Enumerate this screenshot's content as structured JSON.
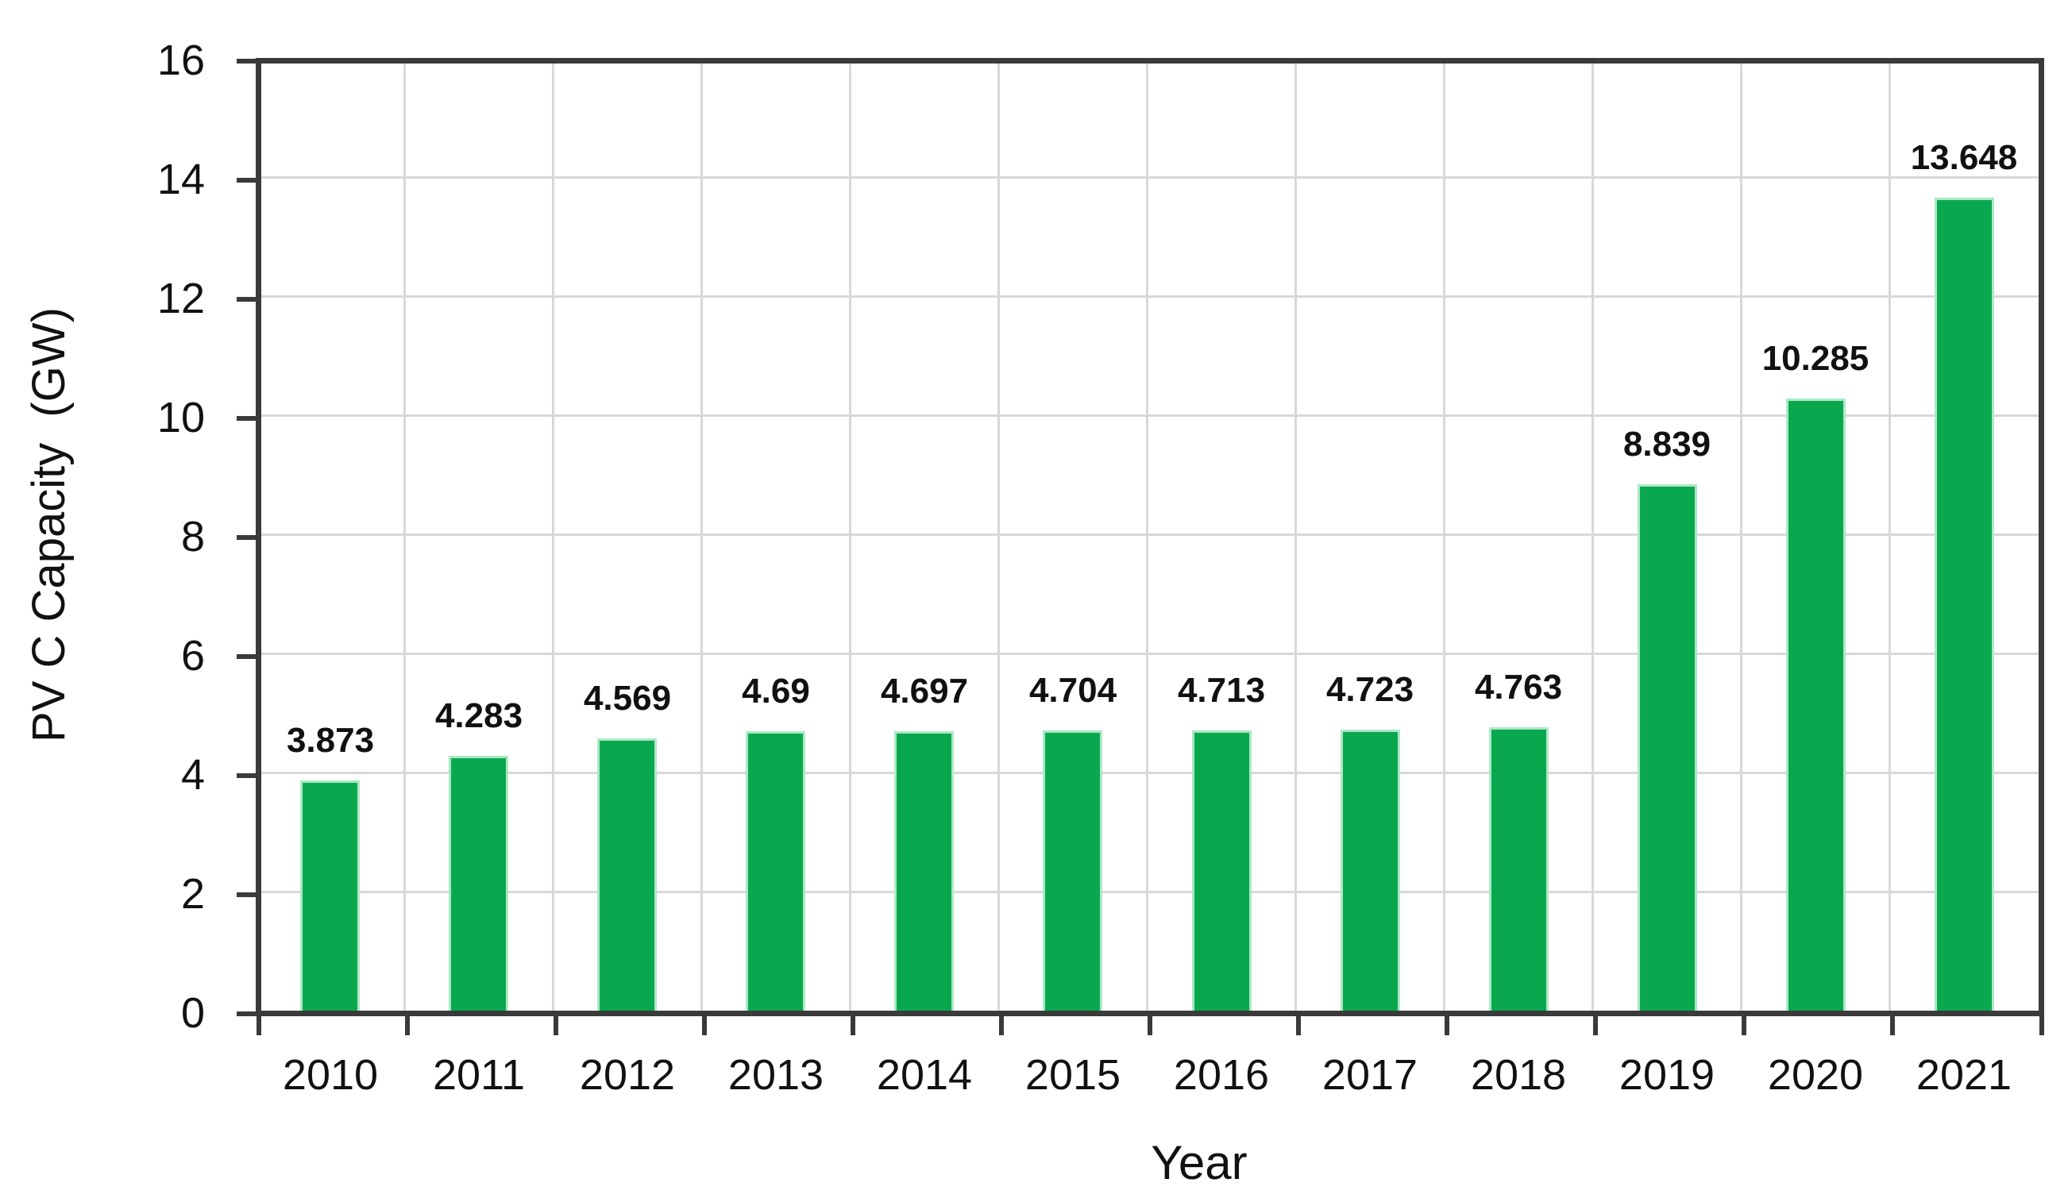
{
  "chart_data": {
    "type": "bar",
    "title": "",
    "xlabel": "Year",
    "ylabel": "PV C Capacity  (GW)",
    "categories": [
      "2010",
      "2011",
      "2012",
      "2013",
      "2014",
      "2015",
      "2016",
      "2017",
      "2018",
      "2019",
      "2020",
      "2021"
    ],
    "values": [
      3.873,
      4.283,
      4.569,
      4.69,
      4.697,
      4.704,
      4.713,
      4.723,
      4.763,
      8.839,
      10.285,
      13.648
    ],
    "value_labels": [
      "3.873",
      "4.283",
      "4.569",
      "4.69",
      "4.697",
      "4.704",
      "4.713",
      "4.723",
      "4.763",
      "8.839",
      "10.285",
      "13.648"
    ],
    "ylim": [
      0,
      16
    ],
    "ytick_step": 2,
    "yticks": [
      "0",
      "2",
      "4",
      "6",
      "8",
      "10",
      "12",
      "14",
      "16"
    ],
    "grid": true,
    "legend_position": "none",
    "bar_color": "#0aa84e",
    "bar_border_color": "#ace8c6",
    "gridline_color": "#d8d8d8",
    "axis_color": "#3a3a3a",
    "text_color": "#111111"
  }
}
